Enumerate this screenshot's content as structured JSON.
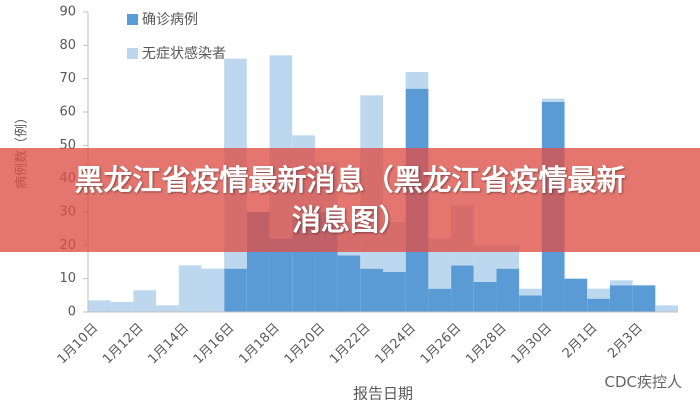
{
  "chart_data": {
    "type": "stacked-bar",
    "y_label": "病例数（例）",
    "x_label": "报告日期",
    "categories": [
      "1月10日",
      null,
      "1月12日",
      null,
      "1月14日",
      null,
      "1月16日",
      null,
      "1月18日",
      null,
      "1月20日",
      null,
      "1月22日",
      null,
      "1月24日",
      null,
      "1月26日",
      null,
      "1月28日",
      null,
      "1月30日",
      null,
      "2月1日",
      null,
      "2月3日",
      null
    ],
    "series": [
      {
        "name": "确诊病例",
        "color": "#5b9bd5",
        "values": [
          0,
          0,
          0,
          0,
          0,
          0,
          13,
          30,
          22,
          28,
          30,
          17,
          13,
          12,
          67,
          7,
          14,
          9,
          13,
          5,
          63,
          10,
          4,
          8,
          8,
          0
        ]
      },
      {
        "name": "无症状感染者",
        "color": "#bdd7ee",
        "values": [
          3.5,
          3,
          6.5,
          2,
          14,
          13,
          63,
          0,
          55,
          25,
          15,
          10,
          52,
          15,
          5,
          15,
          18,
          11,
          7,
          2,
          1,
          0,
          3,
          1.5,
          0,
          2
        ]
      }
    ],
    "ylim": [
      0,
      90
    ],
    "yticks": [
      0,
      10,
      20,
      30,
      40,
      50,
      60,
      70,
      80,
      90
    ],
    "grid": false
  },
  "banner": "黑龙江省疫情最新消息（黑龙江省疫情最新消息图）",
  "watermark": "CDC疾控人"
}
